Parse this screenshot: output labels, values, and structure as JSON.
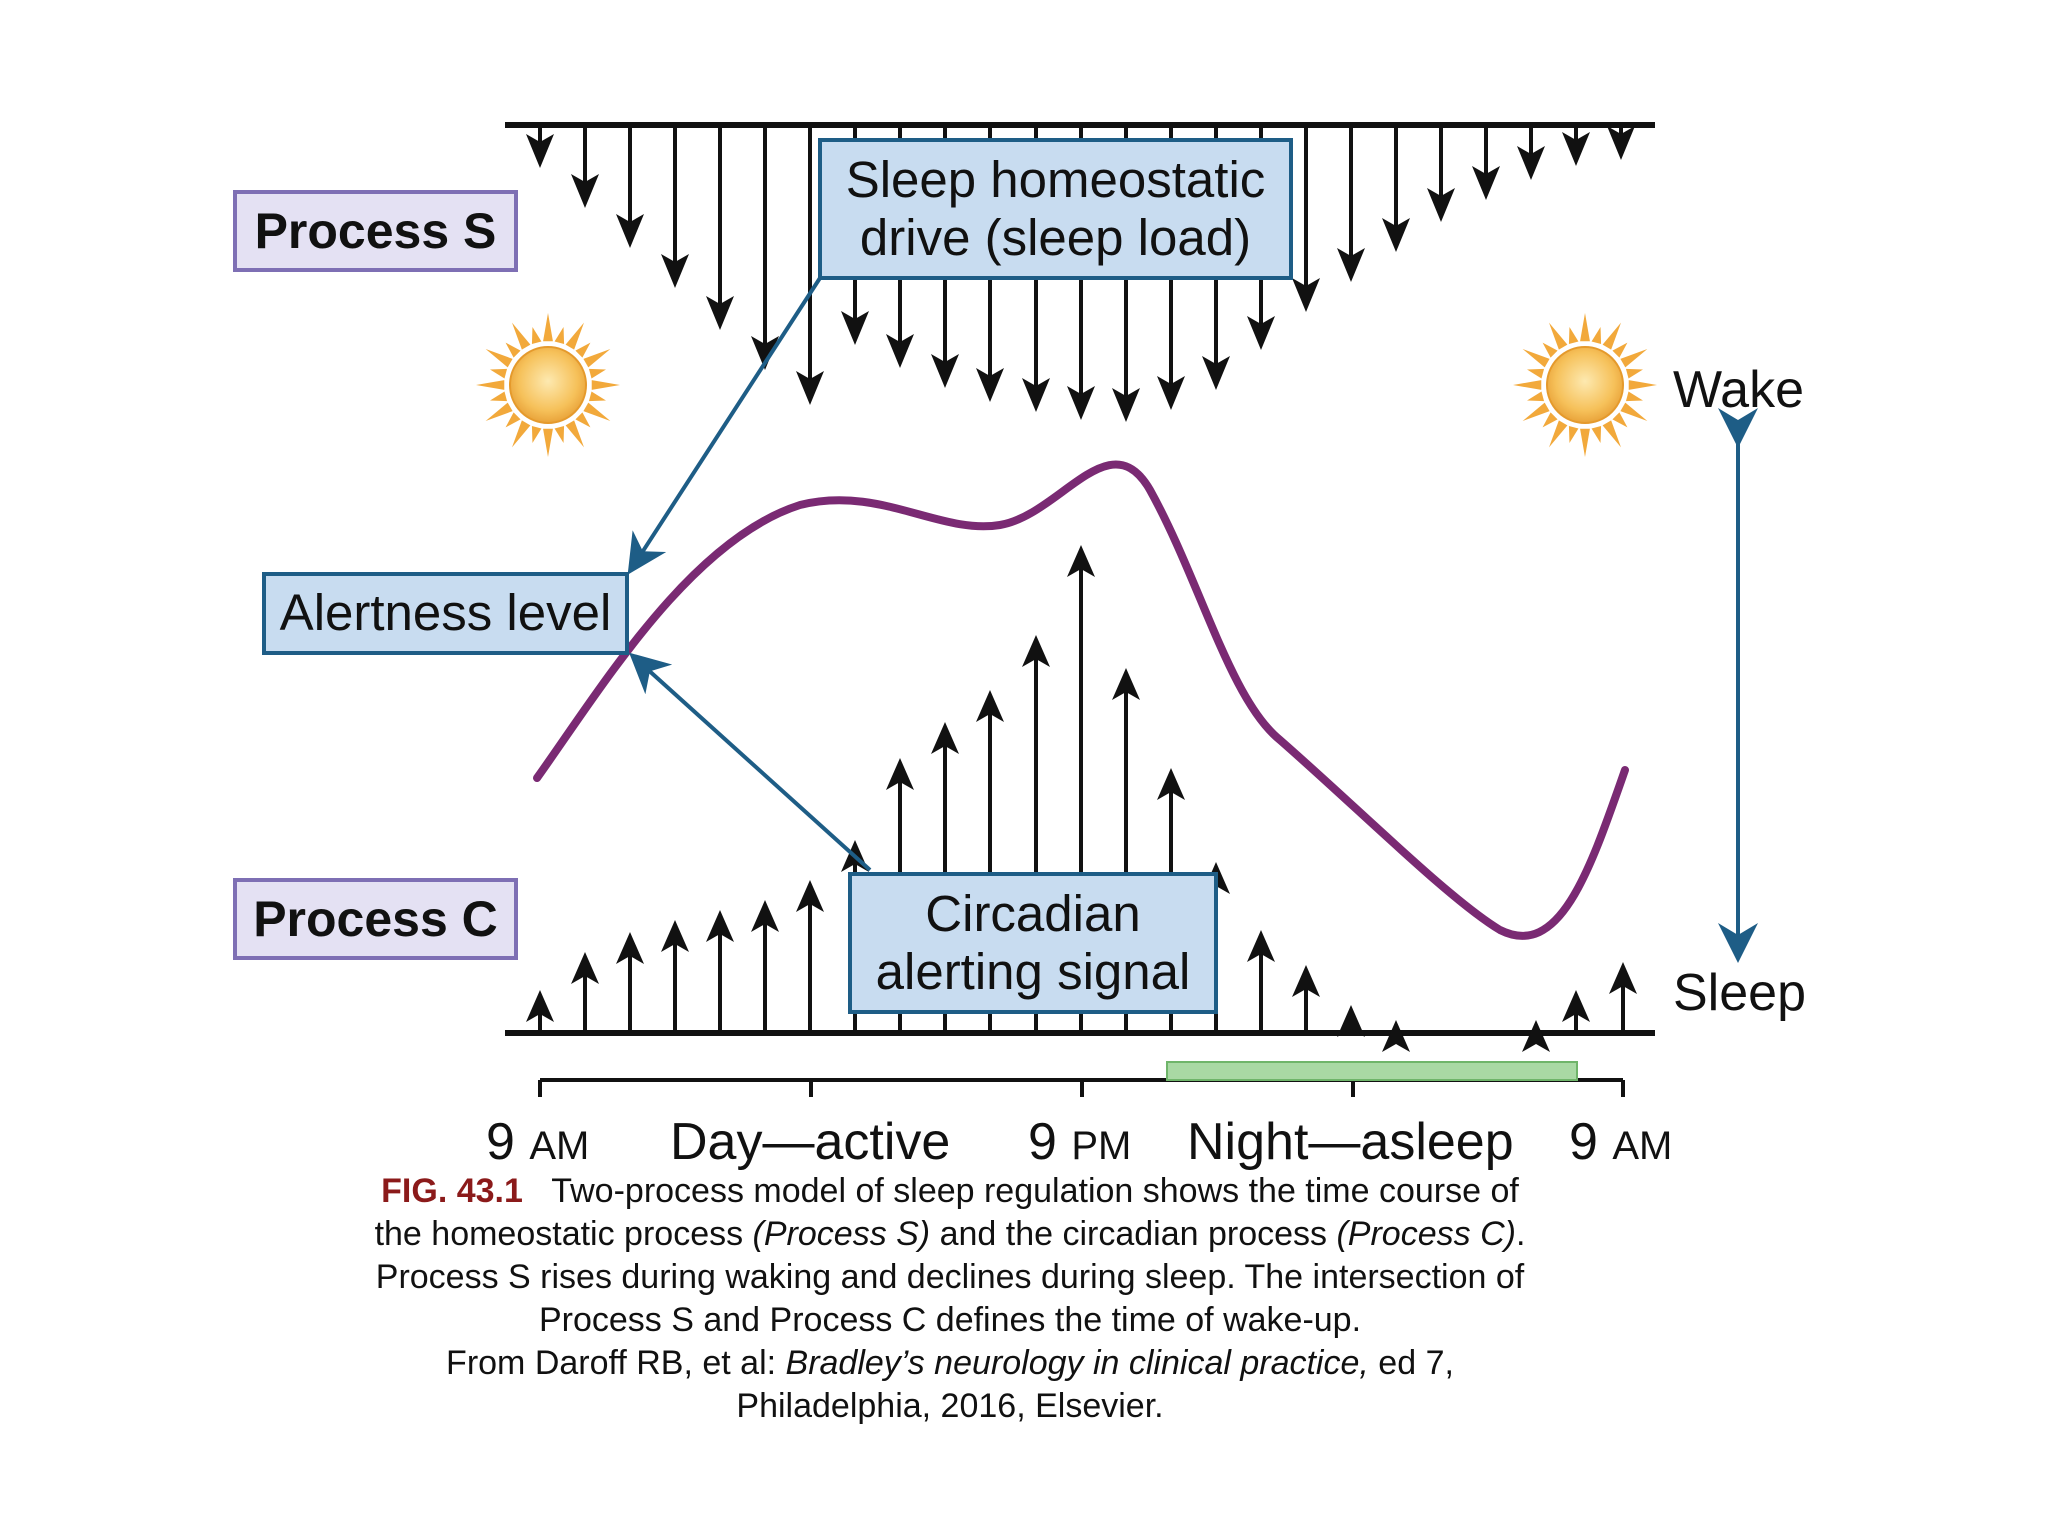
{
  "boxes": {
    "process_s": "Process S",
    "sleep_drive_line1": "Sleep homeostatic",
    "sleep_drive_line2": "drive (sleep load)",
    "alertness": "Alertness level",
    "process_c": "Process C",
    "circadian_line1": "Circadian",
    "circadian_line2": "alerting signal"
  },
  "side_labels": {
    "wake": "Wake",
    "sleep": "Sleep"
  },
  "axis": {
    "start_num": "9",
    "start_ampm": "AM",
    "day": "Day—active",
    "mid_num": "9",
    "mid_ampm": "PM",
    "night": "Night—asleep",
    "end_num": "9",
    "end_ampm": "AM"
  },
  "caption": {
    "fig": "FIG. 43.1",
    "line1": "Two-process model of sleep regulation shows the time course of",
    "line2a": "the homeostatic process ",
    "line2b": "(Process S)",
    "line2c": " and the circadian process ",
    "line2d": "(Process C)",
    "line2e": ".",
    "line3": "Process S rises during waking and declines during sleep. The intersection of",
    "line4": "Process S and Process C defines the time of wake-up.",
    "line5a": "From Daroff RB, et al: ",
    "line5b": "Bradley’s neurology in clinical practice,",
    "line5c": " ed 7,",
    "line6": "Philadelphia, 2016, Elsevier."
  },
  "colors": {
    "alertness_curve": "#7a2a73",
    "pointer_arrow": "#1e5d86",
    "sleep_bar": "#a9d9a4",
    "sun": "#f2a93b",
    "process_box_fill": "#e4e1f3",
    "blue_box_fill": "#c8dcf0",
    "caption_fig": "#8b1a1a"
  },
  "icons": [
    "sun-icon",
    "arrow-down-icon",
    "arrow-up-icon",
    "double-arrow-icon"
  ]
}
